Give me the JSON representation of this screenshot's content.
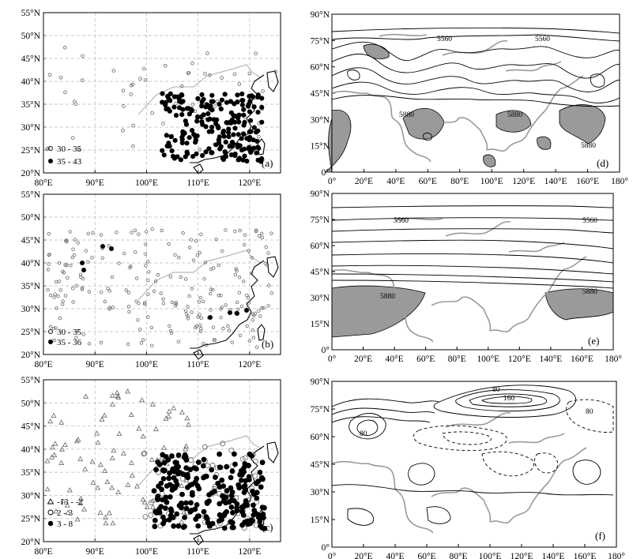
{
  "china_lat_ticks": [
    "55°N",
    "50°N",
    "45°N",
    "40°N",
    "35°N",
    "30°N",
    "25°N",
    "20°N"
  ],
  "china_lon_ticks": [
    "80°E",
    "90°E",
    "100°E",
    "110°E",
    "120°E"
  ],
  "globe_lat_ticks": [
    "90°N",
    "75°N",
    "60°N",
    "45°N",
    "30°N",
    "15°N",
    "0°"
  ],
  "globe_lon_ticks": [
    "0°",
    "20°E",
    "40°E",
    "60°E",
    "80°E",
    "100°E",
    "120°E",
    "140°E",
    "160°E",
    "180°"
  ],
  "panels": {
    "a": {
      "label": "(a)",
      "legend": [
        {
          "symbol": "open-circle",
          "text": "30 - 35"
        },
        {
          "symbol": "filled-circle",
          "text": "35 - 43"
        }
      ]
    },
    "b": {
      "label": "(b)",
      "legend": [
        {
          "symbol": "open-circle",
          "text": "30 - 35"
        },
        {
          "symbol": "filled-circle",
          "text": "35 - 36"
        }
      ]
    },
    "c": {
      "label": "(c)",
      "legend": [
        {
          "symbol": "open-triangle",
          "text": "-13 - -2"
        },
        {
          "symbol": "open-circle",
          "text": "2 - 3"
        },
        {
          "symbol": "filled-circle",
          "text": "3 - 8"
        }
      ]
    },
    "d": {
      "label": "(d)",
      "contour_labels": [
        "5560",
        "5880"
      ]
    },
    "e": {
      "label": "(e)",
      "contour_labels": [
        "5560",
        "5880"
      ]
    },
    "f": {
      "label": "(f)",
      "contour_labels": [
        "80",
        "160"
      ]
    }
  }
}
